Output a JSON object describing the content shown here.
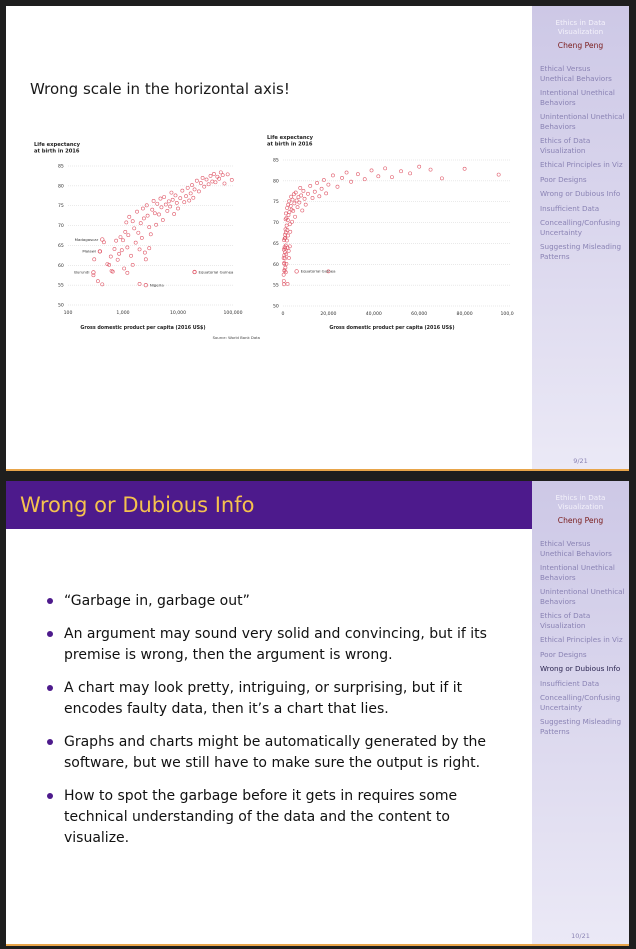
{
  "sidebar": {
    "title": "Ethics in Data Visualization",
    "author": "Cheng Peng",
    "items": [
      "Ethical Versus Unethical Behaviors",
      "Intentional Unethical Behaviors",
      "Unintentional Unethical Behaviors",
      "Ethics of Data Visualization",
      "Ethical Principles in Viz",
      "Poor Designs",
      "Wrong or Dubious Info",
      "Insufficient Data",
      "Concealling/Confusing Uncertainty",
      "Suggesting Misleading Patterns"
    ]
  },
  "slide1": {
    "heading": "Wrong scale in the horizontal axis!",
    "page": "9/21"
  },
  "slide2": {
    "title": "Wrong or Dubious Info",
    "page": "10/21",
    "bullets": [
      "“Garbage in, garbage out”",
      "An argument may sound very solid and convincing, but if its premise is wrong, then the argument is wrong.",
      "A chart may look pretty, intriguing, or surprising, but if it encodes faulty data, then it’s a chart that lies.",
      "Graphs and charts might be automatically generated by the software, but we still have to make sure the output is right.",
      "How to spot the garbage before it gets in requires some technical understanding of the data and the content to visualize."
    ]
  },
  "chart_data": [
    {
      "type": "scatter",
      "title": "Life expectancy at birth in 2016",
      "xlabel": "Gross domestic product per capita (2016 US$)",
      "source": "Source: World Bank Data",
      "xscale": "log",
      "xlim": [
        100,
        100000
      ],
      "ylim": [
        50,
        85
      ],
      "xticks": [
        "100",
        "1,000",
        "10,000",
        "100,000"
      ],
      "yticks": [
        "50",
        "55",
        "60",
        "65",
        "70",
        "75",
        "80",
        "85"
      ],
      "annotations": [
        "Madagascar",
        "Malawi",
        "Burundi",
        "Nigeria",
        "Equatorial Guinea"
      ],
      "points": [
        [
          290,
          57.5
        ],
        [
          300,
          61.5
        ],
        [
          380,
          63.5
        ],
        [
          450,
          65.8
        ],
        [
          520,
          60.3
        ],
        [
          560,
          60.1
        ],
        [
          600,
          62.2
        ],
        [
          620,
          58.6
        ],
        [
          700,
          64.1
        ],
        [
          750,
          66.2
        ],
        [
          800,
          61.4
        ],
        [
          850,
          62.9
        ],
        [
          900,
          67.1
        ],
        [
          950,
          63.8
        ],
        [
          1000,
          66.3
        ],
        [
          1050,
          59.2
        ],
        [
          1100,
          68.4
        ],
        [
          1150,
          70.8
        ],
        [
          1200,
          64.5
        ],
        [
          1250,
          67.6
        ],
        [
          1300,
          72.2
        ],
        [
          1400,
          62.4
        ],
        [
          1500,
          71.1
        ],
        [
          1600,
          69.3
        ],
        [
          1700,
          65.7
        ],
        [
          1800,
          73.5
        ],
        [
          1900,
          68.2
        ],
        [
          2000,
          64.0
        ],
        [
          2100,
          70.6
        ],
        [
          2200,
          66.9
        ],
        [
          2300,
          74.3
        ],
        [
          2400,
          71.8
        ],
        [
          2500,
          63.2
        ],
        [
          2700,
          75.1
        ],
        [
          2800,
          72.5
        ],
        [
          3000,
          69.6
        ],
        [
          3200,
          67.8
        ],
        [
          3400,
          74.0
        ],
        [
          3600,
          76.2
        ],
        [
          3800,
          73.1
        ],
        [
          4000,
          70.2
        ],
        [
          4200,
          75.5
        ],
        [
          4500,
          72.8
        ],
        [
          4800,
          76.8
        ],
        [
          5000,
          74.6
        ],
        [
          5300,
          71.4
        ],
        [
          5600,
          77.2
        ],
        [
          6000,
          75.3
        ],
        [
          6400,
          73.7
        ],
        [
          6800,
          76.1
        ],
        [
          7200,
          74.8
        ],
        [
          7600,
          78.3
        ],
        [
          8000,
          76.5
        ],
        [
          8500,
          72.9
        ],
        [
          9000,
          77.6
        ],
        [
          9500,
          75.7
        ],
        [
          10000,
          74.3
        ],
        [
          11000,
          76.9
        ],
        [
          12000,
          78.8
        ],
        [
          13000,
          75.9
        ],
        [
          14000,
          77.4
        ],
        [
          15000,
          79.5
        ],
        [
          16000,
          76.3
        ],
        [
          17000,
          78.1
        ],
        [
          18000,
          80.2
        ],
        [
          19000,
          77.0
        ],
        [
          20000,
          79.1
        ],
        [
          22000,
          81.3
        ],
        [
          24000,
          78.6
        ],
        [
          26000,
          80.7
        ],
        [
          28000,
          82.0
        ],
        [
          30000,
          79.8
        ],
        [
          33000,
          81.6
        ],
        [
          36000,
          80.4
        ],
        [
          39000,
          82.5
        ],
        [
          42000,
          81.1
        ],
        [
          45000,
          83.0
        ],
        [
          48000,
          80.9
        ],
        [
          52000,
          82.3
        ],
        [
          56000,
          81.8
        ],
        [
          60000,
          83.4
        ],
        [
          65000,
          82.7
        ],
        [
          70000,
          80.6
        ],
        [
          80000,
          82.9
        ],
        [
          95000,
          81.5
        ],
        [
          1200,
          58.1
        ],
        [
          350,
          56.0
        ],
        [
          420,
          55.2
        ],
        [
          2000,
          55.3
        ],
        [
          1500,
          60.1
        ],
        [
          650,
          58.4
        ],
        [
          3000,
          64.3
        ],
        [
          2600,
          61.5
        ],
        [
          20000,
          58.3
        ]
      ]
    },
    {
      "type": "scatter",
      "title": "Life expectancy at birth in 2016",
      "xlabel": "Gross domestic product per capita (2016 US$)",
      "xscale": "linear",
      "xlim": [
        0,
        100000
      ],
      "ylim": [
        50,
        85
      ],
      "xticks": [
        "0",
        "20,000",
        "40,000",
        "60,000",
        "80,000",
        "100,000"
      ],
      "yticks": [
        "50",
        "55",
        "60",
        "65",
        "70",
        "75",
        "80",
        "85"
      ],
      "annotations": [
        "Equatorial Guinea"
      ],
      "points": [
        [
          290,
          57.5
        ],
        [
          300,
          61.5
        ],
        [
          380,
          63.5
        ],
        [
          450,
          65.8
        ],
        [
          520,
          60.3
        ],
        [
          560,
          60.1
        ],
        [
          600,
          62.2
        ],
        [
          620,
          58.6
        ],
        [
          700,
          64.1
        ],
        [
          750,
          66.2
        ],
        [
          800,
          61.4
        ],
        [
          850,
          62.9
        ],
        [
          900,
          67.1
        ],
        [
          950,
          63.8
        ],
        [
          1000,
          66.3
        ],
        [
          1050,
          59.2
        ],
        [
          1100,
          68.4
        ],
        [
          1150,
          70.8
        ],
        [
          1200,
          64.5
        ],
        [
          1250,
          67.6
        ],
        [
          1300,
          72.2
        ],
        [
          1400,
          62.4
        ],
        [
          1500,
          71.1
        ],
        [
          1600,
          69.3
        ],
        [
          1700,
          65.7
        ],
        [
          1800,
          73.5
        ],
        [
          1900,
          68.2
        ],
        [
          2000,
          64.0
        ],
        [
          2100,
          70.6
        ],
        [
          2200,
          66.9
        ],
        [
          2300,
          74.3
        ],
        [
          2400,
          71.8
        ],
        [
          2500,
          63.2
        ],
        [
          2700,
          75.1
        ],
        [
          2800,
          72.5
        ],
        [
          3000,
          69.6
        ],
        [
          3200,
          67.8
        ],
        [
          3400,
          74.0
        ],
        [
          3600,
          76.2
        ],
        [
          3800,
          73.1
        ],
        [
          4000,
          70.2
        ],
        [
          4200,
          75.5
        ],
        [
          4500,
          72.8
        ],
        [
          4800,
          76.8
        ],
        [
          5000,
          74.6
        ],
        [
          5300,
          71.4
        ],
        [
          5600,
          77.2
        ],
        [
          6000,
          75.3
        ],
        [
          6400,
          73.7
        ],
        [
          6800,
          76.1
        ],
        [
          7200,
          74.8
        ],
        [
          7600,
          78.3
        ],
        [
          8000,
          76.5
        ],
        [
          8500,
          72.9
        ],
        [
          9000,
          77.6
        ],
        [
          9500,
          75.7
        ],
        [
          10000,
          74.3
        ],
        [
          11000,
          76.9
        ],
        [
          12000,
          78.8
        ],
        [
          13000,
          75.9
        ],
        [
          14000,
          77.4
        ],
        [
          15000,
          79.5
        ],
        [
          16000,
          76.3
        ],
        [
          17000,
          78.1
        ],
        [
          18000,
          80.2
        ],
        [
          19000,
          77.0
        ],
        [
          20000,
          79.1
        ],
        [
          22000,
          81.3
        ],
        [
          24000,
          78.6
        ],
        [
          26000,
          80.7
        ],
        [
          28000,
          82.0
        ],
        [
          30000,
          79.8
        ],
        [
          33000,
          81.6
        ],
        [
          36000,
          80.4
        ],
        [
          39000,
          82.5
        ],
        [
          42000,
          81.1
        ],
        [
          45000,
          83.0
        ],
        [
          48000,
          80.9
        ],
        [
          52000,
          82.3
        ],
        [
          56000,
          81.8
        ],
        [
          60000,
          83.4
        ],
        [
          65000,
          82.7
        ],
        [
          70000,
          80.6
        ],
        [
          80000,
          82.9
        ],
        [
          95000,
          81.5
        ],
        [
          1200,
          58.1
        ],
        [
          350,
          56.0
        ],
        [
          420,
          55.2
        ],
        [
          2000,
          55.3
        ],
        [
          1500,
          60.1
        ],
        [
          650,
          58.4
        ],
        [
          3000,
          64.3
        ],
        [
          2600,
          61.5
        ],
        [
          20000,
          58.3
        ]
      ]
    }
  ]
}
